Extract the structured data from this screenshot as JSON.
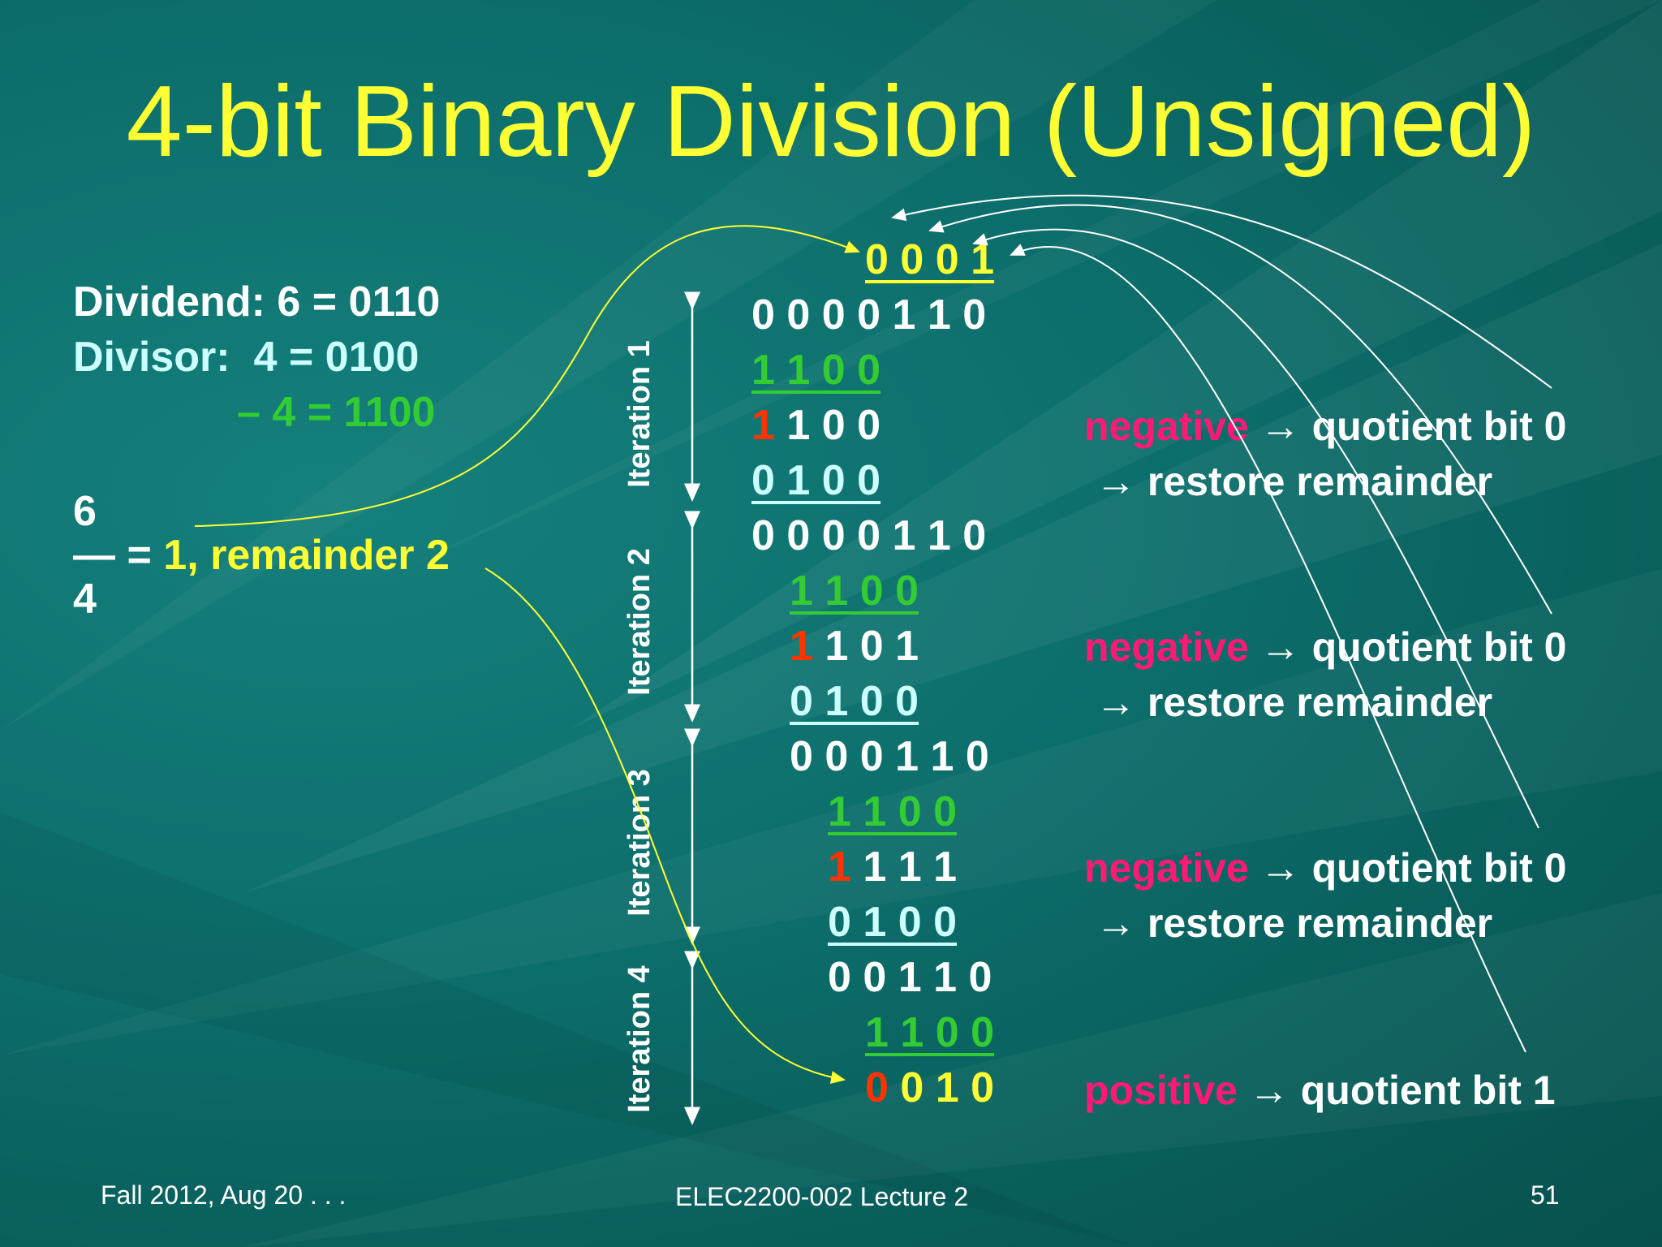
{
  "slide": {
    "title": "4-bit Binary Division (Unsigned)",
    "given": {
      "dividend": "Dividend: 6 = 0110",
      "divisor": "Divisor:  4 = 0100",
      "neg_divisor": "– 4 = 1100"
    },
    "fraction": {
      "numerator": "6",
      "bar_eq": "— =",
      "result": " 1, remainder 2",
      "denominator": "4"
    },
    "quotient": "0 0 0 1",
    "iteration_labels": [
      "Iteration 1",
      "Iteration 2",
      "Iteration 3",
      "Iteration 4"
    ],
    "iterations": [
      {
        "dividend": "0 0 0 0 1 1 0",
        "subtrahend": "1 1 0 0",
        "result_msb": "1",
        "result_rest": " 1 0 0",
        "restore": "0 1 0 0"
      },
      {
        "dividend": "0 0 0 0 1 1 0",
        "subtrahend": "1 1 0 0",
        "result_msb": "1",
        "result_rest": " 1 0 1",
        "restore": "0 1 0 0"
      },
      {
        "dividend": "0 0 0 1 1 0",
        "subtrahend": "1 1 0 0",
        "result_msb": "1",
        "result_rest": " 1 1 1",
        "restore": "0 1 0 0"
      },
      {
        "dividend": "0 0 1 1 0",
        "subtrahend": "1 1 0 0",
        "result_msb": "0",
        "result_rest": " 0 1 0"
      }
    ],
    "notes": {
      "negative": "negative",
      "positive": "positive",
      "bit0": " → quotient bit 0",
      "bit1": " → quotient bit 1",
      "restore": "→ restore remainder"
    },
    "footer": {
      "date": "Fall 2012, Aug 20 . . .",
      "course": "ELEC2200-002 Lecture 2",
      "page": "51"
    },
    "colors": {
      "title": "#ffff33",
      "white": "#ffffff",
      "green": "#33cc33",
      "red": "#ff3300",
      "pink": "#ff1a75",
      "light_cyan": "#ccffff"
    }
  }
}
